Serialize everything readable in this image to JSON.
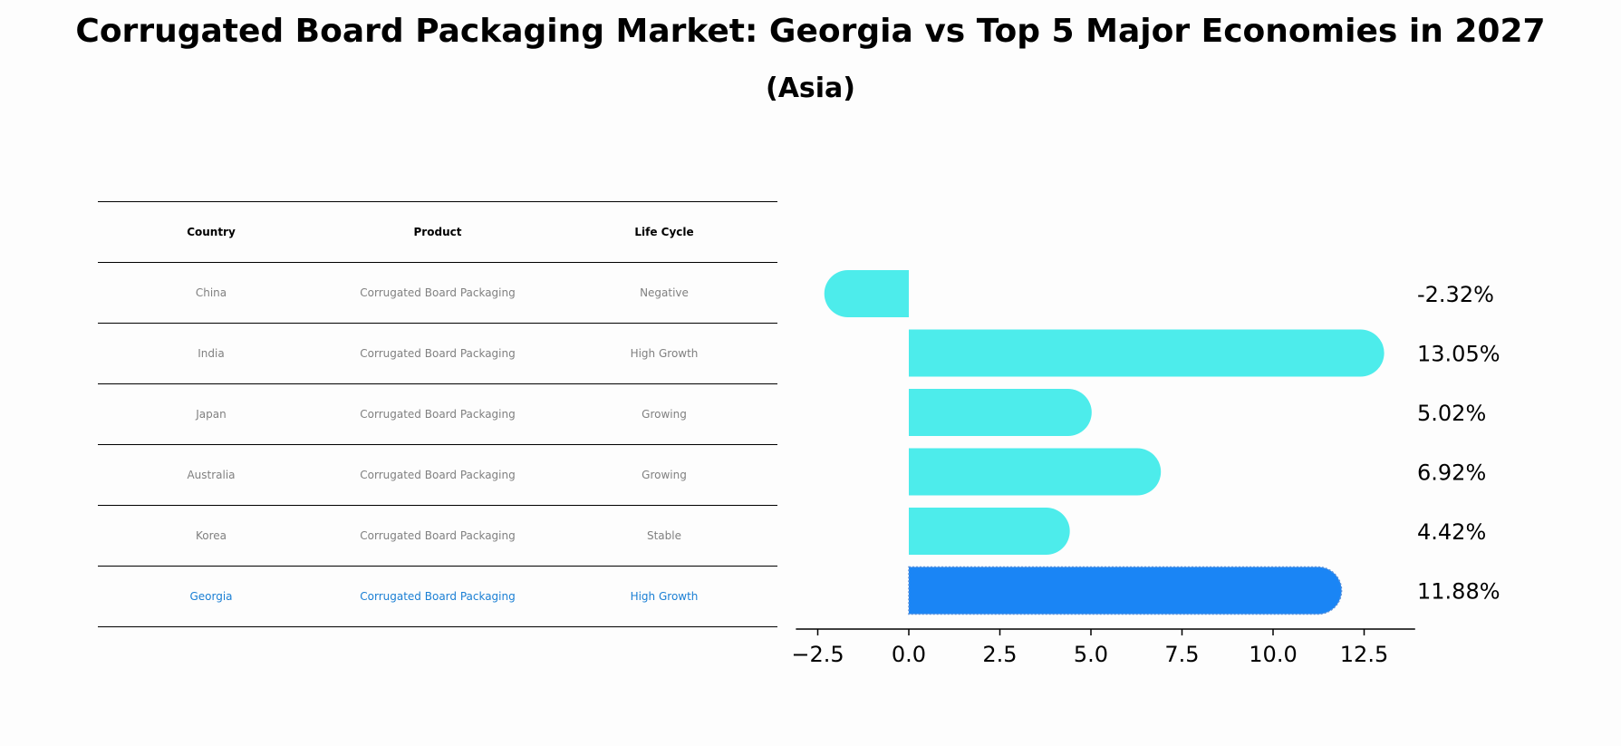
{
  "chart_data": {
    "type": "bar",
    "orientation": "horizontal",
    "title": "Corrugated Board Packaging Market: Georgia vs Top 5 Major Economies in 2027",
    "subtitle": "(Asia)",
    "categories": [
      "China",
      "India",
      "Japan",
      "Australia",
      "Korea",
      "Georgia"
    ],
    "values": [
      -2.32,
      13.05,
      5.02,
      6.92,
      4.42,
      11.88
    ],
    "value_labels": [
      "-2.32%",
      "13.05%",
      "5.02%",
      "6.92%",
      "4.42%",
      "11.88%"
    ],
    "highlight": "Georgia",
    "xlim": [
      -3.1,
      13.9
    ],
    "xticks": [
      -2.5,
      0.0,
      2.5,
      5.0,
      7.5,
      10.0,
      12.5
    ],
    "xtick_labels": [
      "−2.5",
      "0.0",
      "2.5",
      "5.0",
      "7.5",
      "10.0",
      "12.5"
    ],
    "xlabel": "",
    "ylabel": "",
    "colors": {
      "default": "#4deceb",
      "highlight": "#1a85f5"
    }
  },
  "table": {
    "headers": [
      "Country",
      "Product",
      "Life Cycle"
    ],
    "rows": [
      [
        "China",
        "Corrugated Board Packaging",
        "Negative"
      ],
      [
        "India",
        "Corrugated Board Packaging",
        "High Growth"
      ],
      [
        "Japan",
        "Corrugated Board Packaging",
        "Growing"
      ],
      [
        "Australia",
        "Corrugated Board Packaging",
        "Growing"
      ],
      [
        "Korea",
        "Corrugated Board Packaging",
        "Stable"
      ],
      [
        "Georgia",
        "Corrugated Board Packaging",
        "High Growth"
      ]
    ],
    "highlight_row": 5,
    "highlight_color": "#1a7fd4"
  }
}
